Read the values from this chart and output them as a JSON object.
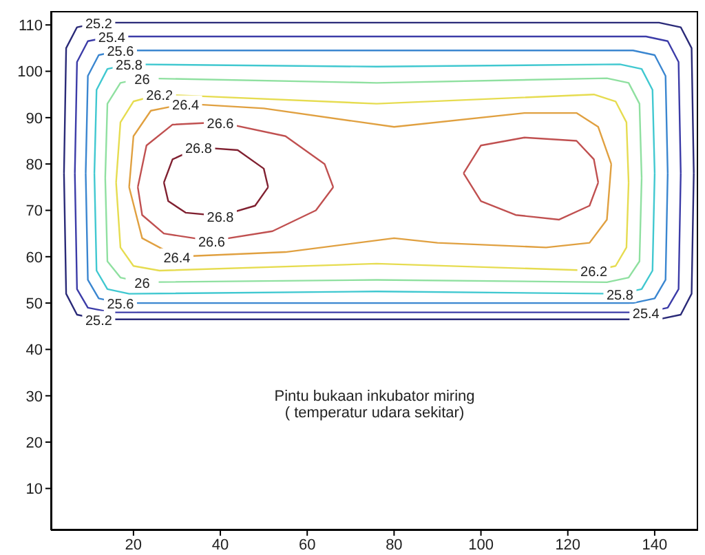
{
  "chart_data": {
    "type": "line",
    "xlim": [
      1,
      150
    ],
    "ylim": [
      1,
      113
    ],
    "xticks": [
      20,
      40,
      60,
      80,
      100,
      120,
      140
    ],
    "yticks": [
      10,
      20,
      30,
      40,
      50,
      60,
      70,
      80,
      90,
      100,
      110
    ],
    "grid": false,
    "legend": false,
    "marker": "none",
    "line_style": "solid",
    "annotations": [
      "Pintu bukaan inkubator miring\n( temperatur udara sekitar)"
    ],
    "series": [
      {
        "name": "25.2",
        "color": "#2a2a78",
        "x": [
          4,
          4.5,
          7,
          12,
          76,
          141,
          146,
          148.5,
          149,
          null,
          4,
          4.5,
          7,
          12,
          76,
          141,
          146,
          148.5,
          149
        ],
        "values": [
          78,
          105,
          109.5,
          110.5,
          110.5,
          110.5,
          109.5,
          105,
          78,
          null,
          78,
          52,
          47.5,
          46.5,
          46.5,
          46.5,
          47.5,
          52,
          78
        ]
      },
      {
        "name": "25.4",
        "color": "#3c3ca8",
        "x": [
          6.5,
          7,
          9.5,
          15,
          76,
          138,
          143,
          145.5,
          146,
          null,
          6.5,
          7,
          9.5,
          15,
          76,
          138,
          143,
          145.5,
          146
        ],
        "values": [
          78,
          102,
          106.5,
          107.5,
          107.5,
          107.5,
          106.5,
          102,
          78,
          null,
          78,
          53,
          49,
          48,
          48,
          48,
          49,
          53,
          78
        ]
      },
      {
        "name": "25.6",
        "color": "#3a86d0",
        "x": [
          9,
          9.5,
          12,
          17,
          76,
          135,
          140,
          142.5,
          143,
          null,
          9,
          9.5,
          12,
          17,
          76,
          135,
          140,
          142.5,
          143
        ],
        "values": [
          78,
          99,
          103.5,
          104.5,
          104.5,
          104.5,
          103.5,
          99,
          78,
          null,
          78,
          55,
          51,
          50,
          50,
          50,
          51,
          55,
          78
        ]
      },
      {
        "name": "25.8",
        "color": "#40c8d0",
        "x": [
          11,
          11.5,
          14,
          19,
          76,
          132,
          137,
          139.5,
          140,
          null,
          11,
          11.5,
          14,
          19,
          76,
          132,
          137,
          139.5,
          140
        ],
        "values": [
          78,
          96,
          100.5,
          101.5,
          101,
          101.5,
          100.5,
          96,
          78,
          null,
          78,
          57,
          53,
          52,
          52.5,
          52,
          53,
          57,
          78
        ]
      },
      {
        "name": "26",
        "color": "#8fe0a0",
        "x": [
          13.5,
          14,
          17,
          22,
          76,
          129,
          134,
          136.5,
          137,
          null,
          13.5,
          14,
          17,
          22,
          76,
          129,
          134,
          136.5,
          137
        ],
        "values": [
          77,
          93,
          97.5,
          98.5,
          97.5,
          98.5,
          97.5,
          93,
          77,
          null,
          77,
          59,
          55.5,
          54.5,
          55,
          54.5,
          55.5,
          59,
          77
        ]
      },
      {
        "name": "26.2",
        "color": "#e6dc50",
        "x": [
          16,
          17,
          20,
          26,
          76,
          126,
          131,
          133.5,
          134,
          null,
          16,
          17,
          20,
          26,
          76,
          126,
          131,
          133.5,
          134
        ],
        "values": [
          76,
          89,
          93.5,
          95,
          93,
          95,
          93.5,
          89,
          76,
          null,
          76,
          62,
          58,
          57,
          58.5,
          57,
          58,
          62,
          76
        ]
      },
      {
        "name": "26.4",
        "color": "#e0a040",
        "x": [
          19,
          20,
          24,
          32,
          50,
          80,
          110,
          122,
          127,
          130,
          null,
          19,
          22,
          30,
          55,
          80,
          90,
          115,
          125,
          129,
          130
        ],
        "values": [
          75,
          86,
          91.5,
          93,
          92,
          88,
          91,
          91,
          88,
          80,
          null,
          75,
          64,
          60,
          61,
          64,
          63,
          62,
          63,
          68,
          80
        ]
      },
      {
        "name": "26.6",
        "color": "#c05050",
        "x": [
          21,
          23,
          29,
          40,
          55,
          64,
          66,
          null,
          96,
          100,
          110,
          122,
          126,
          127,
          null,
          21,
          22,
          27,
          38,
          52,
          62,
          66,
          null,
          96,
          100,
          108,
          118,
          125,
          127
        ],
        "values": [
          75,
          84,
          88.5,
          89,
          86,
          80,
          75,
          null,
          78,
          84,
          85.7,
          85,
          81,
          76,
          null,
          75,
          69,
          65,
          63.4,
          65.5,
          70,
          75,
          null,
          78,
          72,
          69,
          68,
          71,
          76
        ]
      },
      {
        "name": "26.8",
        "color": "#802030",
        "x": [
          27,
          29,
          35,
          44,
          50,
          51,
          null,
          27,
          28,
          32,
          40,
          48,
          51
        ],
        "values": [
          76,
          81,
          83.6,
          83,
          79,
          75,
          null,
          76,
          72,
          69.5,
          68.8,
          71,
          75
        ]
      }
    ]
  }
}
